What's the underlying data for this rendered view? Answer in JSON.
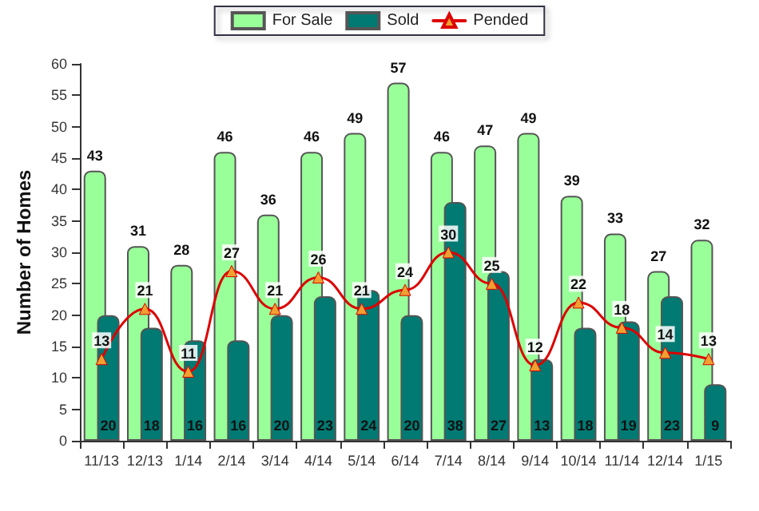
{
  "chart_data": {
    "type": "bar",
    "ylabel": "Number of Homes",
    "categories": [
      "11/13",
      "12/13",
      "1/14",
      "2/14",
      "3/14",
      "4/14",
      "5/14",
      "6/14",
      "7/14",
      "8/14",
      "9/14",
      "10/14",
      "11/14",
      "12/14",
      "1/15"
    ],
    "series": [
      {
        "name": "For Sale",
        "color": "#99ff99",
        "values": [
          43,
          31,
          28,
          46,
          36,
          46,
          49,
          57,
          46,
          47,
          49,
          39,
          33,
          27,
          32
        ]
      },
      {
        "name": "Sold",
        "color": "#007a73",
        "values": [
          20,
          18,
          16,
          16,
          20,
          23,
          24,
          20,
          38,
          27,
          13,
          18,
          19,
          23,
          9
        ]
      },
      {
        "name": "Pended",
        "type": "line",
        "color": "#dd0000",
        "values": [
          13,
          21,
          11,
          27,
          21,
          26,
          21,
          24,
          30,
          25,
          12,
          22,
          18,
          14,
          13
        ]
      }
    ],
    "ylim": [
      0,
      60
    ],
    "yticks": [
      0,
      5,
      10,
      15,
      20,
      25,
      30,
      35,
      40,
      45,
      50,
      55,
      60
    ],
    "grid": false,
    "legend": "top",
    "marker": "triangle",
    "line_style": "solid",
    "data_labels": true
  }
}
